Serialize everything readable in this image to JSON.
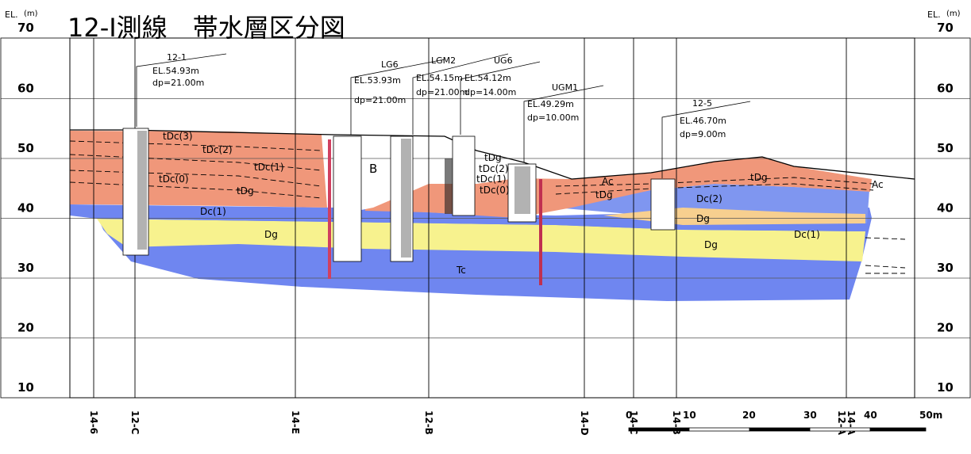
{
  "title": "12-Ⅰ測線　帯水層区分図",
  "axis": {
    "label": "EL.",
    "unit": "(m)",
    "ticks": [
      70,
      60,
      50,
      40,
      30,
      20,
      10
    ]
  },
  "boreholes": [
    {
      "name": "12-1",
      "elevation": "EL.54.93m",
      "depth": "dp=21.00m"
    },
    {
      "name": "LG6",
      "elevation": "EL.53.93m",
      "depth": "dp=21.00m"
    },
    {
      "name": "LGM2",
      "elevation": "EL.54.15m",
      "depth": "dp=21.00m"
    },
    {
      "name": "UG6",
      "elevation": "EL.54.12m",
      "depth": "dp=14.00m"
    },
    {
      "name": "UGM1",
      "elevation": "EL.49.29m",
      "depth": "dp=10.00m"
    },
    {
      "name": "12-5",
      "elevation": "EL.46.70m",
      "depth": "dp=9.00m"
    }
  ],
  "layers": [
    "tDc(3)",
    "tDc(2)",
    "tDc(1)",
    "tDc(0)",
    "tDg",
    "Dc(1)",
    "Dg",
    "B",
    "Tc",
    "tDg",
    "tDc(2)",
    "tDc(1)",
    "tDc(0)",
    "Ac",
    "tDg",
    "Dc(2)",
    "Dg",
    "Dg",
    "Dc(1)",
    "tDg",
    "Ac"
  ],
  "sections": [
    "14-6",
    "12-C",
    "14-E",
    "12-B",
    "14-D",
    "14-C",
    "14-B",
    "12-A",
    "14-A"
  ],
  "scale": [
    "0",
    "10",
    "20",
    "30",
    "40",
    "50m"
  ]
}
